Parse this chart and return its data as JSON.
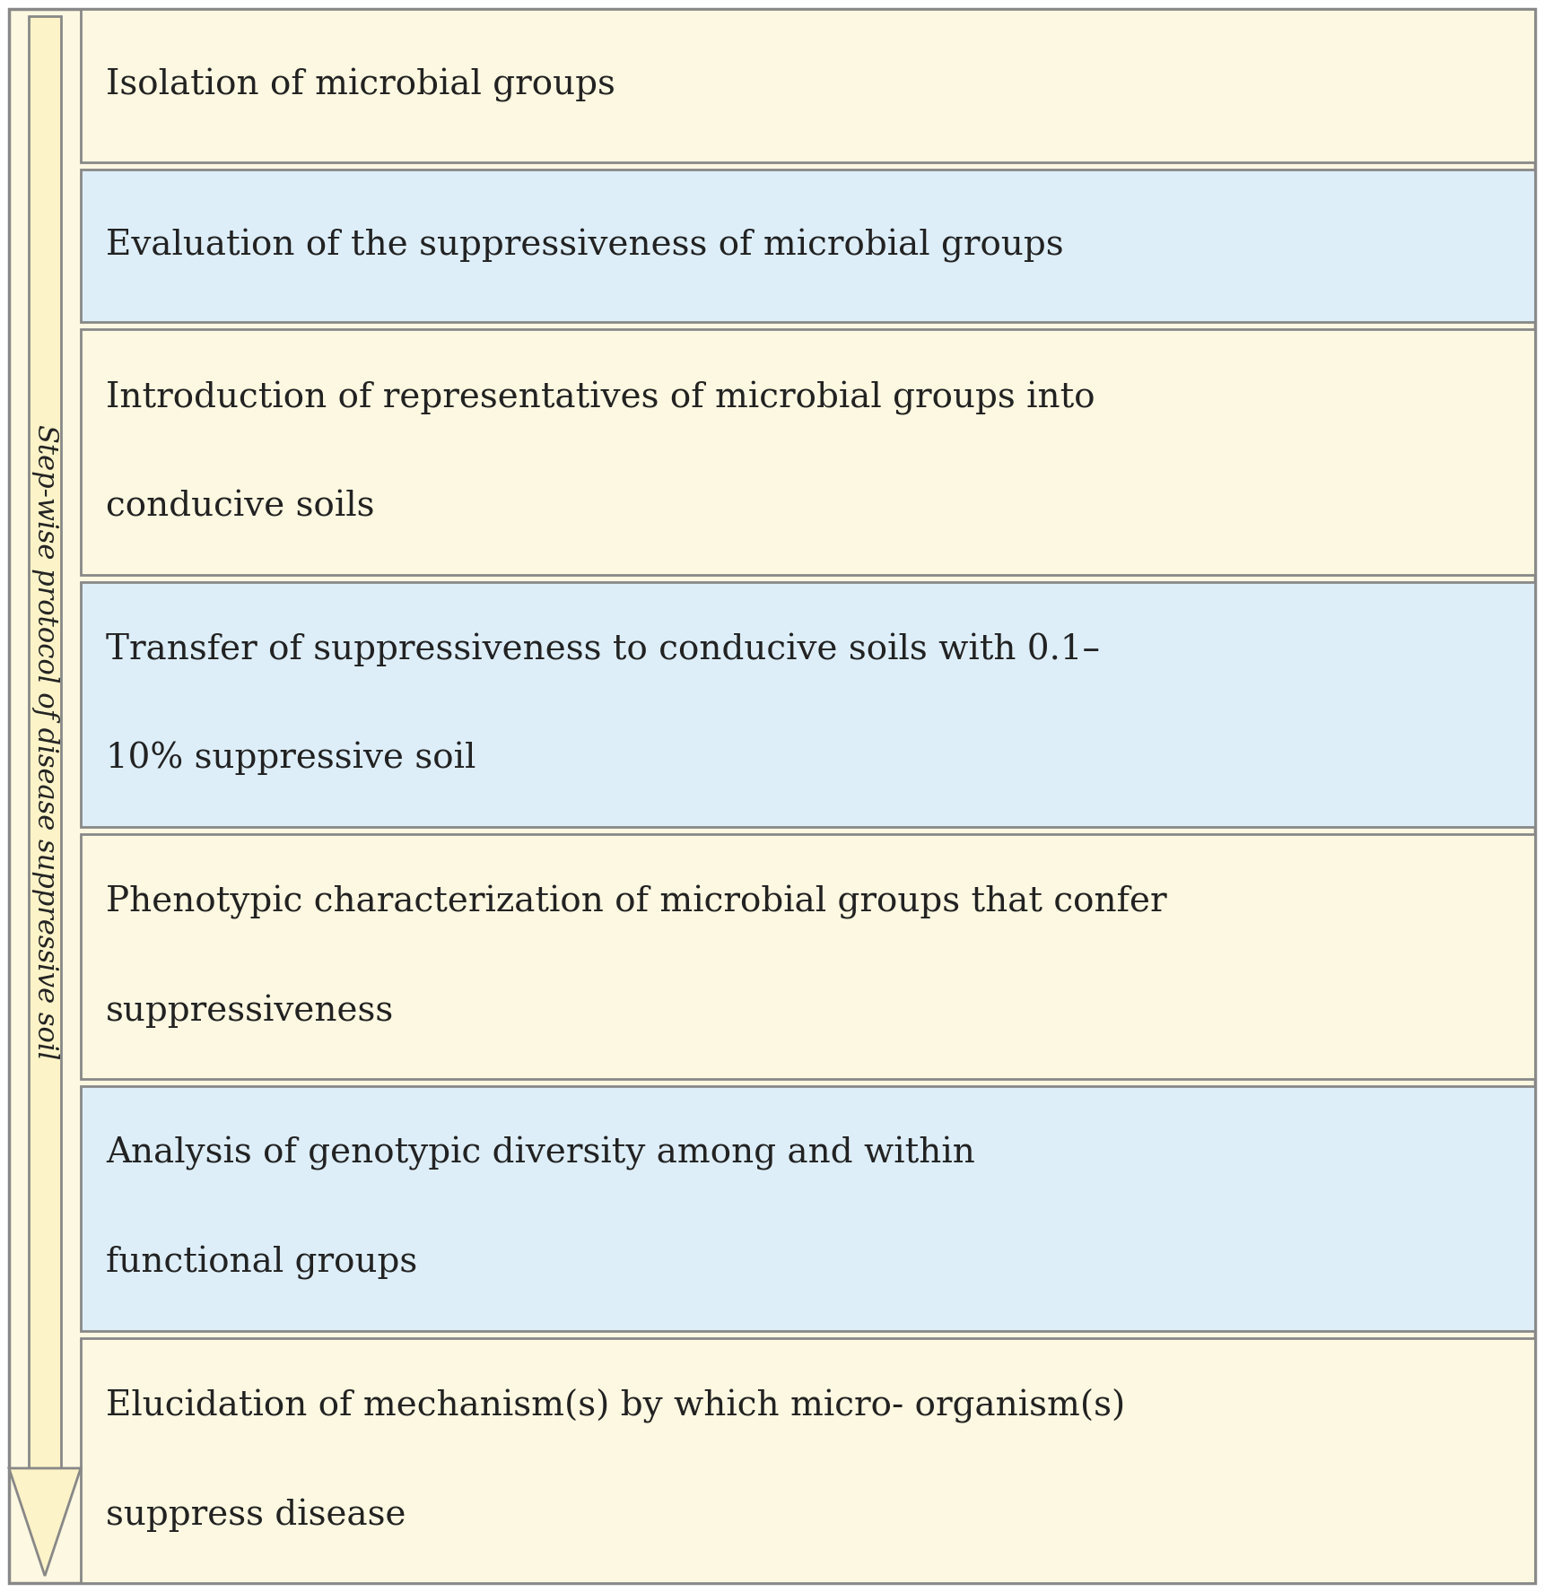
{
  "boxes": [
    {
      "text": "Isolation of microbial groups",
      "bg": "#fdf8e1",
      "two_line": false
    },
    {
      "text": "Evaluation of the suppressiveness of microbial groups",
      "bg": "#ddeef8",
      "two_line": false
    },
    {
      "text": "Introduction of representatives of microbial groups into\n\nconducive soils",
      "bg": "#fdf8e1",
      "two_line": true
    },
    {
      "text": "Transfer of suppressiveness to conducive soils with 0.1–\n\n10% suppressive soil",
      "bg": "#ddeef8",
      "two_line": true
    },
    {
      "text": "Phenotypic characterization of microbial groups that confer\n\nsuppressiveness",
      "bg": "#fdf8e1",
      "two_line": true
    },
    {
      "text": "Analysis of genotypic diversity among and within\n\nfunctional groups",
      "bg": "#ddeef8",
      "two_line": true
    },
    {
      "text": "Elucidation of mechanism(s) by which micro- organism(s)\n\nsuppress disease",
      "bg": "#fdf8e1",
      "two_line": true
    }
  ],
  "box_edgecolor": "#888888",
  "outer_facecolor": "#fdf8e1",
  "outer_edgecolor": "#888888",
  "arrow_facecolor": "#fdf3c8",
  "arrow_edgecolor": "#888888",
  "text_color": "#222222",
  "label_text": "Step-wise protocol of disease suppressive soil",
  "label_color": "#222222",
  "font_size": 28,
  "label_font_size": 22,
  "fig_width": 17.21,
  "fig_height": 17.75
}
